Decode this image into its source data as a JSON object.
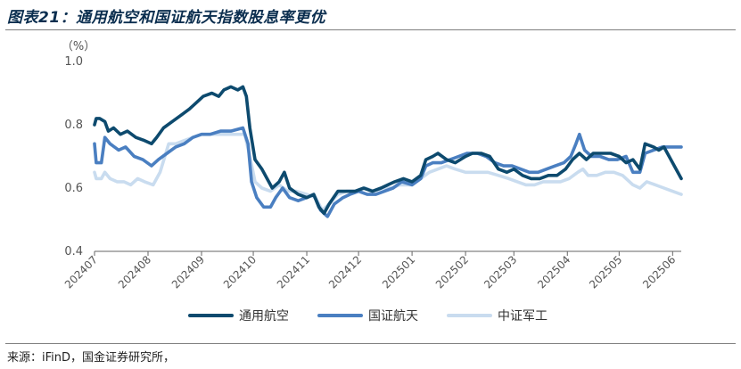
{
  "figure": {
    "title": "图表21：通用航空和国证航天指数股息率更优",
    "source": "来源：iFinD，国金证券研究所，"
  },
  "chart_data": {
    "type": "line",
    "unit_label": "（%）",
    "ylim": [
      0.4,
      1.0
    ],
    "yticks": [
      "1.0",
      "0.8",
      "0.6",
      "0.4"
    ],
    "xlim": [
      "2024-07-01",
      "2025-06-06"
    ],
    "xticks": [
      {
        "label": "202407",
        "date": "2024-07-01"
      },
      {
        "label": "202408",
        "date": "2024-08-01"
      },
      {
        "label": "202409",
        "date": "2024-09-01"
      },
      {
        "label": "202410",
        "date": "2024-10-01"
      },
      {
        "label": "202411",
        "date": "2024-11-01"
      },
      {
        "label": "202412",
        "date": "2024-12-01"
      },
      {
        "label": "202501",
        "date": "2025-01-01"
      },
      {
        "label": "202502",
        "date": "2025-02-01"
      },
      {
        "label": "202503",
        "date": "2025-03-01"
      },
      {
        "label": "202504",
        "date": "2025-04-01"
      },
      {
        "label": "202505",
        "date": "2025-05-01"
      },
      {
        "label": "202506",
        "date": "2025-06-01"
      }
    ],
    "legend_position": "bottom",
    "grid": false,
    "series": [
      {
        "name": "通用航空",
        "color": "#0d4a6e",
        "points": [
          [
            "2024-07-01",
            0.8
          ],
          [
            "2024-07-02",
            0.82
          ],
          [
            "2024-07-04",
            0.82
          ],
          [
            "2024-07-07",
            0.81
          ],
          [
            "2024-07-09",
            0.78
          ],
          [
            "2024-07-12",
            0.79
          ],
          [
            "2024-07-16",
            0.77
          ],
          [
            "2024-07-20",
            0.78
          ],
          [
            "2024-07-25",
            0.76
          ],
          [
            "2024-07-30",
            0.75
          ],
          [
            "2024-08-03",
            0.74
          ],
          [
            "2024-08-06",
            0.76
          ],
          [
            "2024-08-10",
            0.79
          ],
          [
            "2024-08-15",
            0.81
          ],
          [
            "2024-08-20",
            0.83
          ],
          [
            "2024-08-25",
            0.85
          ],
          [
            "2024-08-29",
            0.87
          ],
          [
            "2024-09-02",
            0.89
          ],
          [
            "2024-09-07",
            0.9
          ],
          [
            "2024-09-11",
            0.89
          ],
          [
            "2024-09-14",
            0.91
          ],
          [
            "2024-09-18",
            0.92
          ],
          [
            "2024-09-22",
            0.91
          ],
          [
            "2024-09-25",
            0.92
          ],
          [
            "2024-09-27",
            0.89
          ],
          [
            "2024-09-29",
            0.79
          ],
          [
            "2024-10-02",
            0.69
          ],
          [
            "2024-10-06",
            0.66
          ],
          [
            "2024-10-09",
            0.63
          ],
          [
            "2024-10-12",
            0.6
          ],
          [
            "2024-10-16",
            0.62
          ],
          [
            "2024-10-19",
            0.65
          ],
          [
            "2024-10-22",
            0.6
          ],
          [
            "2024-10-27",
            0.58
          ],
          [
            "2024-11-01",
            0.57
          ],
          [
            "2024-11-05",
            0.58
          ],
          [
            "2024-11-08",
            0.54
          ],
          [
            "2024-11-11",
            0.52
          ],
          [
            "2024-11-14",
            0.55
          ],
          [
            "2024-11-19",
            0.59
          ],
          [
            "2024-11-24",
            0.59
          ],
          [
            "2024-11-29",
            0.59
          ],
          [
            "2024-12-04",
            0.6
          ],
          [
            "2024-12-09",
            0.59
          ],
          [
            "2024-12-14",
            0.6
          ],
          [
            "2024-12-18",
            0.61
          ],
          [
            "2024-12-22",
            0.62
          ],
          [
            "2024-12-27",
            0.63
          ],
          [
            "2025-01-01",
            0.62
          ],
          [
            "2025-01-06",
            0.64
          ],
          [
            "2025-01-09",
            0.69
          ],
          [
            "2025-01-13",
            0.7
          ],
          [
            "2025-01-16",
            0.71
          ],
          [
            "2025-01-21",
            0.69
          ],
          [
            "2025-01-26",
            0.68
          ],
          [
            "2025-02-01",
            0.7
          ],
          [
            "2025-02-05",
            0.71
          ],
          [
            "2025-02-10",
            0.71
          ],
          [
            "2025-02-15",
            0.7
          ],
          [
            "2025-02-20",
            0.66
          ],
          [
            "2025-02-25",
            0.65
          ],
          [
            "2025-03-01",
            0.66
          ],
          [
            "2025-03-06",
            0.64
          ],
          [
            "2025-03-11",
            0.63
          ],
          [
            "2025-03-16",
            0.63
          ],
          [
            "2025-03-21",
            0.64
          ],
          [
            "2025-03-26",
            0.64
          ],
          [
            "2025-03-31",
            0.66
          ],
          [
            "2025-04-04",
            0.69
          ],
          [
            "2025-04-08",
            0.71
          ],
          [
            "2025-04-12",
            0.69
          ],
          [
            "2025-04-16",
            0.71
          ],
          [
            "2025-04-21",
            0.71
          ],
          [
            "2025-04-26",
            0.71
          ],
          [
            "2025-05-01",
            0.7
          ],
          [
            "2025-05-05",
            0.68
          ],
          [
            "2025-05-09",
            0.69
          ],
          [
            "2025-05-13",
            0.66
          ],
          [
            "2025-05-16",
            0.74
          ],
          [
            "2025-05-21",
            0.73
          ],
          [
            "2025-05-24",
            0.72
          ],
          [
            "2025-05-27",
            0.73
          ],
          [
            "2025-06-01",
            0.68
          ],
          [
            "2025-06-06",
            0.63
          ]
        ]
      },
      {
        "name": "国证航天",
        "color": "#4a7fc1",
        "points": [
          [
            "2024-07-01",
            0.74
          ],
          [
            "2024-07-02",
            0.68
          ],
          [
            "2024-07-05",
            0.68
          ],
          [
            "2024-07-07",
            0.76
          ],
          [
            "2024-07-10",
            0.74
          ],
          [
            "2024-07-15",
            0.72
          ],
          [
            "2024-07-19",
            0.73
          ],
          [
            "2024-07-24",
            0.7
          ],
          [
            "2024-07-29",
            0.69
          ],
          [
            "2024-08-03",
            0.67
          ],
          [
            "2024-08-07",
            0.69
          ],
          [
            "2024-08-12",
            0.71
          ],
          [
            "2024-08-17",
            0.73
          ],
          [
            "2024-08-22",
            0.74
          ],
          [
            "2024-08-27",
            0.76
          ],
          [
            "2024-09-01",
            0.77
          ],
          [
            "2024-09-06",
            0.77
          ],
          [
            "2024-09-12",
            0.78
          ],
          [
            "2024-09-18",
            0.78
          ],
          [
            "2024-09-25",
            0.79
          ],
          [
            "2024-09-28",
            0.74
          ],
          [
            "2024-09-30",
            0.62
          ],
          [
            "2024-10-03",
            0.57
          ],
          [
            "2024-10-07",
            0.54
          ],
          [
            "2024-10-11",
            0.54
          ],
          [
            "2024-10-14",
            0.57
          ],
          [
            "2024-10-18",
            0.6
          ],
          [
            "2024-10-22",
            0.57
          ],
          [
            "2024-10-27",
            0.56
          ],
          [
            "2024-11-01",
            0.57
          ],
          [
            "2024-11-05",
            0.58
          ],
          [
            "2024-11-09",
            0.53
          ],
          [
            "2024-11-13",
            0.51
          ],
          [
            "2024-11-17",
            0.55
          ],
          [
            "2024-11-22",
            0.57
          ],
          [
            "2024-11-26",
            0.58
          ],
          [
            "2024-12-01",
            0.59
          ],
          [
            "2024-12-06",
            0.58
          ],
          [
            "2024-12-11",
            0.58
          ],
          [
            "2024-12-16",
            0.59
          ],
          [
            "2024-12-21",
            0.6
          ],
          [
            "2024-12-26",
            0.62
          ],
          [
            "2025-01-01",
            0.61
          ],
          [
            "2025-01-06",
            0.63
          ],
          [
            "2025-01-09",
            0.67
          ],
          [
            "2025-01-13",
            0.68
          ],
          [
            "2025-01-18",
            0.68
          ],
          [
            "2025-01-23",
            0.69
          ],
          [
            "2025-01-28",
            0.7
          ],
          [
            "2025-02-02",
            0.71
          ],
          [
            "2025-02-08",
            0.71
          ],
          [
            "2025-02-13",
            0.7
          ],
          [
            "2025-02-18",
            0.68
          ],
          [
            "2025-02-23",
            0.67
          ],
          [
            "2025-02-28",
            0.67
          ],
          [
            "2025-03-05",
            0.66
          ],
          [
            "2025-03-10",
            0.65
          ],
          [
            "2025-03-15",
            0.65
          ],
          [
            "2025-03-20",
            0.66
          ],
          [
            "2025-03-25",
            0.67
          ],
          [
            "2025-03-30",
            0.68
          ],
          [
            "2025-04-03",
            0.7
          ],
          [
            "2025-04-06",
            0.74
          ],
          [
            "2025-04-08",
            0.77
          ],
          [
            "2025-04-11",
            0.72
          ],
          [
            "2025-04-15",
            0.7
          ],
          [
            "2025-04-20",
            0.7
          ],
          [
            "2025-04-25",
            0.69
          ],
          [
            "2025-04-30",
            0.69
          ],
          [
            "2025-05-05",
            0.7
          ],
          [
            "2025-05-09",
            0.65
          ],
          [
            "2025-05-13",
            0.65
          ],
          [
            "2025-05-16",
            0.71
          ],
          [
            "2025-05-21",
            0.72
          ],
          [
            "2025-05-26",
            0.73
          ],
          [
            "2025-05-31",
            0.73
          ],
          [
            "2025-06-06",
            0.73
          ]
        ]
      },
      {
        "name": "中证军工",
        "color": "#c9dcef",
        "points": [
          [
            "2024-07-01",
            0.65
          ],
          [
            "2024-07-02",
            0.63
          ],
          [
            "2024-07-05",
            0.63
          ],
          [
            "2024-07-07",
            0.65
          ],
          [
            "2024-07-10",
            0.63
          ],
          [
            "2024-07-14",
            0.62
          ],
          [
            "2024-07-18",
            0.62
          ],
          [
            "2024-07-22",
            0.61
          ],
          [
            "2024-07-26",
            0.63
          ],
          [
            "2024-07-30",
            0.62
          ],
          [
            "2024-08-04",
            0.61
          ],
          [
            "2024-08-08",
            0.65
          ],
          [
            "2024-08-13",
            0.74
          ],
          [
            "2024-08-17",
            0.74
          ],
          [
            "2024-08-22",
            0.75
          ],
          [
            "2024-08-27",
            0.76
          ],
          [
            "2024-09-01",
            0.77
          ],
          [
            "2024-09-07",
            0.77
          ],
          [
            "2024-09-13",
            0.77
          ],
          [
            "2024-09-20",
            0.77
          ],
          [
            "2024-09-26",
            0.77
          ],
          [
            "2024-09-29",
            0.7
          ],
          [
            "2024-10-02",
            0.62
          ],
          [
            "2024-10-06",
            0.6
          ],
          [
            "2024-10-11",
            0.59
          ],
          [
            "2024-10-16",
            0.61
          ],
          [
            "2024-10-21",
            0.59
          ],
          [
            "2024-10-26",
            0.59
          ],
          [
            "2024-11-01",
            0.58
          ],
          [
            "2024-11-06",
            0.57
          ],
          [
            "2024-11-10",
            0.53
          ],
          [
            "2024-11-14",
            0.55
          ],
          [
            "2024-11-19",
            0.58
          ],
          [
            "2024-11-24",
            0.59
          ],
          [
            "2024-11-29",
            0.59
          ],
          [
            "2024-12-05",
            0.6
          ],
          [
            "2024-12-10",
            0.59
          ],
          [
            "2024-12-15",
            0.6
          ],
          [
            "2024-12-20",
            0.6
          ],
          [
            "2024-12-25",
            0.61
          ],
          [
            "2025-01-01",
            0.61
          ],
          [
            "2025-01-06",
            0.63
          ],
          [
            "2025-01-11",
            0.65
          ],
          [
            "2025-01-16",
            0.66
          ],
          [
            "2025-01-21",
            0.67
          ],
          [
            "2025-01-26",
            0.66
          ],
          [
            "2025-02-01",
            0.65
          ],
          [
            "2025-02-08",
            0.65
          ],
          [
            "2025-02-14",
            0.65
          ],
          [
            "2025-02-20",
            0.64
          ],
          [
            "2025-02-26",
            0.63
          ],
          [
            "2025-03-03",
            0.62
          ],
          [
            "2025-03-08",
            0.61
          ],
          [
            "2025-03-13",
            0.61
          ],
          [
            "2025-03-18",
            0.62
          ],
          [
            "2025-03-23",
            0.62
          ],
          [
            "2025-03-28",
            0.62
          ],
          [
            "2025-04-02",
            0.63
          ],
          [
            "2025-04-07",
            0.65
          ],
          [
            "2025-04-10",
            0.66
          ],
          [
            "2025-04-13",
            0.64
          ],
          [
            "2025-04-18",
            0.64
          ],
          [
            "2025-04-23",
            0.65
          ],
          [
            "2025-04-28",
            0.65
          ],
          [
            "2025-05-03",
            0.64
          ],
          [
            "2025-05-09",
            0.61
          ],
          [
            "2025-05-13",
            0.6
          ],
          [
            "2025-05-17",
            0.62
          ],
          [
            "2025-05-22",
            0.61
          ],
          [
            "2025-05-27",
            0.6
          ],
          [
            "2025-06-01",
            0.59
          ],
          [
            "2025-06-06",
            0.58
          ]
        ]
      }
    ]
  }
}
